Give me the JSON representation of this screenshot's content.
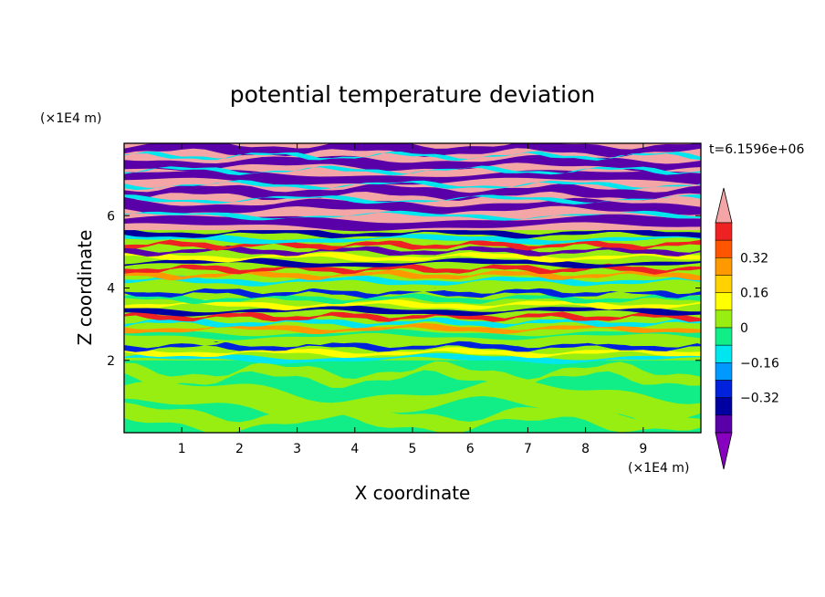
{
  "chart_data": {
    "type": "heatmap",
    "title": "potential temperature deviation",
    "xlabel": "X coordinate",
    "ylabel": "Z coordinate",
    "x_unit": "(×1E4 m)",
    "y_unit": "(×1E4 m)",
    "time_label": "t=6.1596e+06",
    "xlim": [
      0,
      10
    ],
    "ylim": [
      0,
      8
    ],
    "x_ticks": [
      "1",
      "2",
      "3",
      "4",
      "5",
      "6",
      "7",
      "8",
      "9"
    ],
    "y_ticks": [
      "2",
      "4",
      "6"
    ],
    "grid": false,
    "legend": "right",
    "colorbar": {
      "levels": [
        -0.48,
        -0.4,
        -0.32,
        -0.24,
        -0.16,
        -0.08,
        0,
        0.08,
        0.16,
        0.24,
        0.32,
        0.4,
        0.48
      ],
      "tick_labels": [
        "0.32",
        "0.16",
        "0",
        "−0.16",
        "−0.32"
      ],
      "colors_top_to_bottom": [
        "#f4a6a6",
        "#ee2222",
        "#ff5500",
        "#ff9900",
        "#ffd200",
        "#ffff00",
        "#99ee11",
        "#11ee88",
        "#00e6ee",
        "#0099ff",
        "#0022dd",
        "#0000a0",
        "#5a00a8",
        "#8800c0"
      ]
    }
  }
}
